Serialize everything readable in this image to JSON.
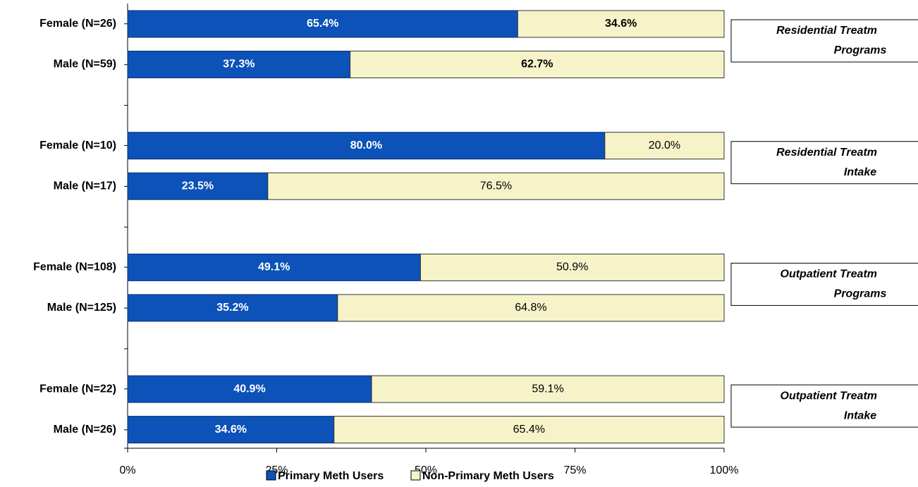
{
  "chart_data": {
    "type": "stacked-bar-horizontal",
    "categories": [
      "Female (N=26)",
      "Male (N=59)",
      "Female (N=10)",
      "Male (N=17)",
      "Female (N=108)",
      "Male (N=125)",
      "Female (N=22)",
      "Male (N=26)"
    ],
    "series": [
      {
        "name": "Primary Meth Users",
        "color": "#0c52b8",
        "values": [
          65.4,
          37.3,
          80.0,
          23.5,
          49.1,
          35.2,
          40.9,
          34.6
        ],
        "value_labels": [
          "65.4%",
          "37.3%",
          "80.0%",
          "23.5%",
          "49.1%",
          "35.2%",
          "40.9%",
          "34.6%"
        ]
      },
      {
        "name": "Non-Primary Meth Users",
        "color": "#f6f3c9",
        "values": [
          34.6,
          62.7,
          20.0,
          76.5,
          50.9,
          64.8,
          59.1,
          65.4
        ],
        "value_labels": [
          "34.6%",
          "62.7%",
          "20.0%",
          "76.5%",
          "50.9%",
          "64.8%",
          "59.1%",
          "65.4%"
        ]
      }
    ],
    "xlim": [
      0,
      100
    ],
    "xticks": [
      {
        "value": 0,
        "label": "0%"
      },
      {
        "value": 25,
        "label": "25%"
      },
      {
        "value": 50,
        "label": "50%"
      },
      {
        "value": 75,
        "label": "75%"
      },
      {
        "value": 100,
        "label": "100%"
      }
    ],
    "annotations": [
      [
        "Residential Treatm",
        "Programs"
      ],
      [
        "Residential Treatm",
        "Intake"
      ],
      [
        "Outpatient Treatm",
        "Programs"
      ],
      [
        "Outpatient Treatm",
        "Intake"
      ]
    ],
    "legend": "bottom"
  }
}
